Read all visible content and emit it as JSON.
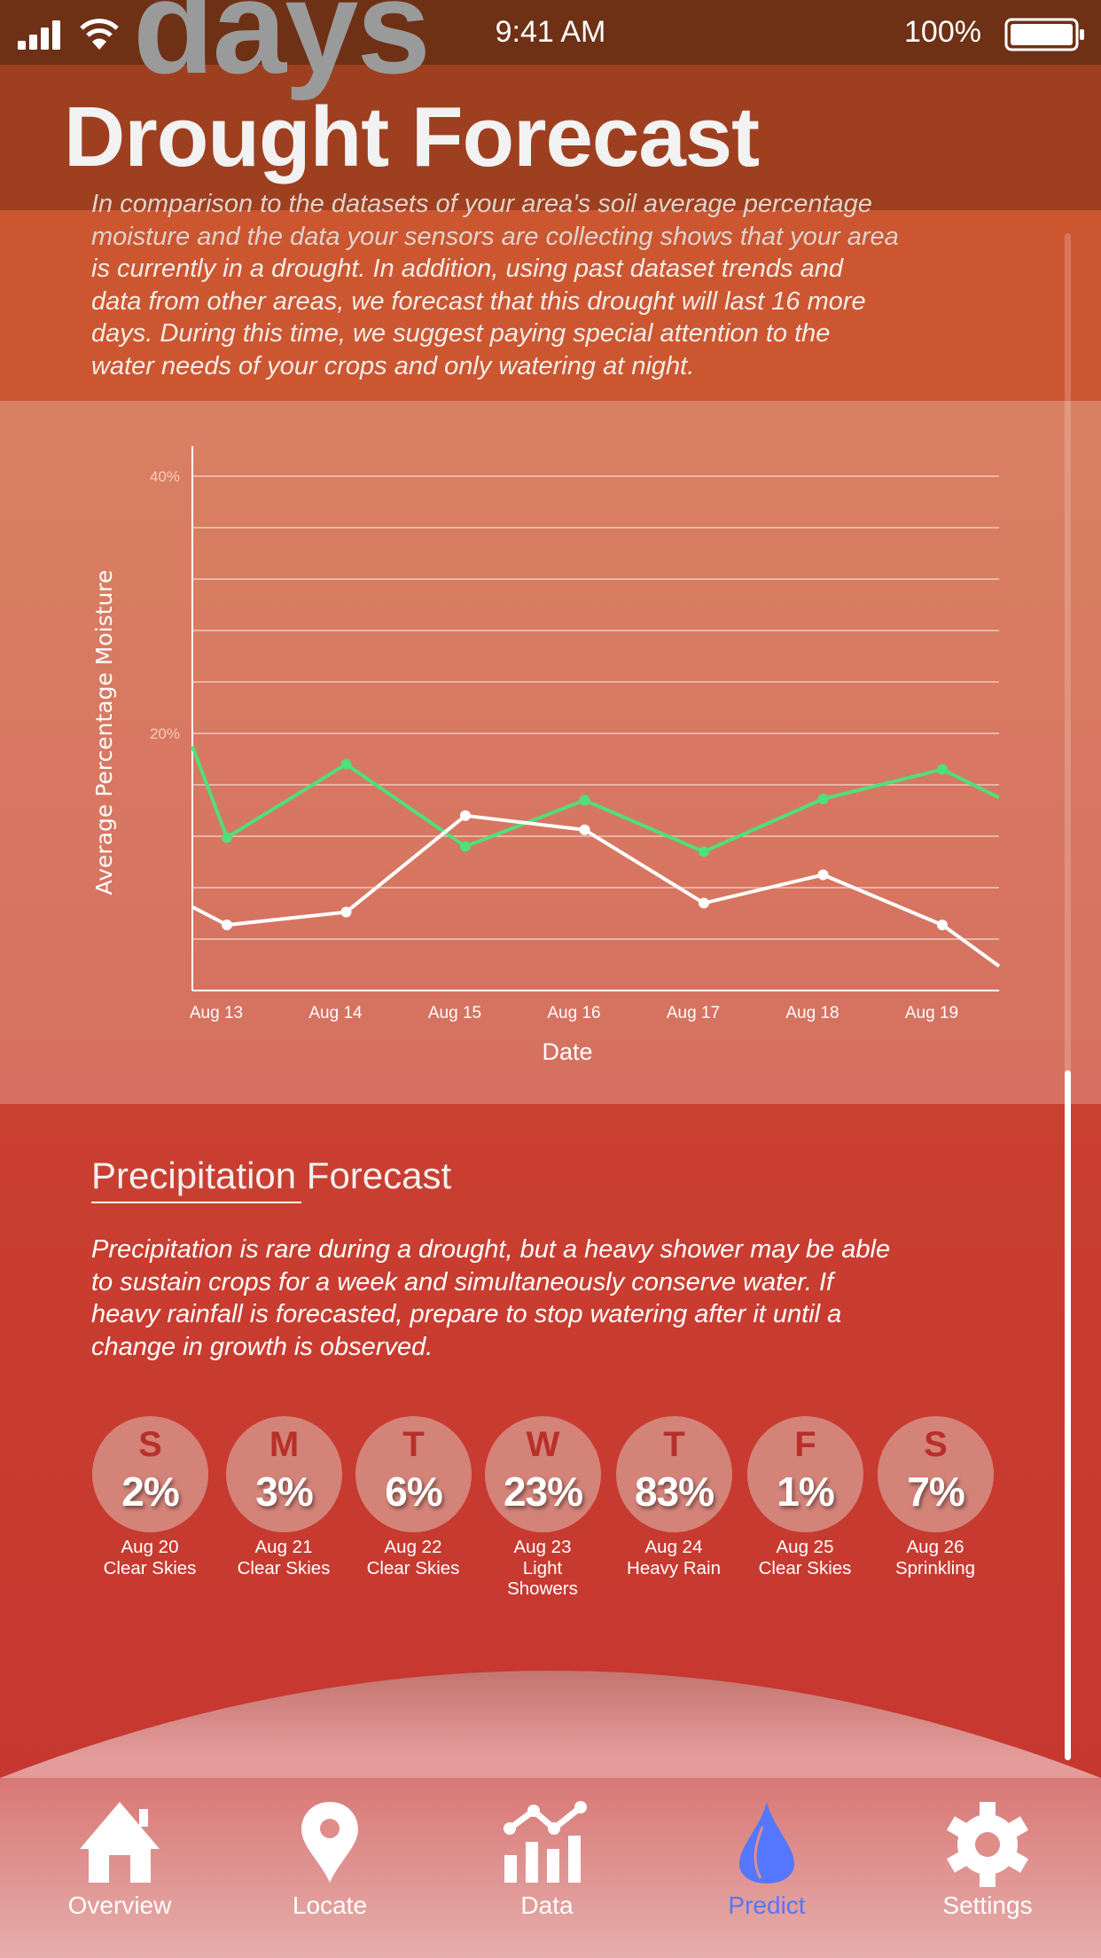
{
  "status_bar": {
    "time": "9:41 AM",
    "battery": "100%"
  },
  "drought": {
    "ghost_text": "days",
    "title": "Drought Forecast",
    "paragraph_lines": [
      "In comparison to the datasets of your area's soil average percentage",
      "moisture and the data your sensors are collecting shows that your area",
      "is currently in a drought. In addition, using past dataset trends and",
      "data from other areas, we forecast that this drought will last 16 more",
      "days. During this time, we suggest paying special attention to the",
      "water needs of your crops and only watering at night."
    ]
  },
  "chart_data": {
    "type": "line",
    "xlabel": "Date",
    "ylabel": "Average Percentage Moisture",
    "categories": [
      "Aug 13",
      "Aug 14",
      "Aug 15",
      "Aug 16",
      "Aug 17",
      "Aug 18",
      "Aug 19"
    ],
    "yticks": [
      "20%",
      "40%"
    ],
    "ylim": [
      0,
      45
    ],
    "grid": true,
    "gridline_step": 4,
    "series": [
      {
        "color": "#4ee07a",
        "values": [
          11.9,
          17.6,
          11.2,
          14.8,
          10.8,
          14.9,
          17.2
        ],
        "value_before_first": 19.0,
        "value_after_last": 15.0
      },
      {
        "color": "#ffffff",
        "values": [
          5.1,
          6.1,
          13.6,
          12.5,
          6.8,
          9.0,
          5.1
        ],
        "value_before_first": 6.5,
        "value_after_last": 1.9
      }
    ]
  },
  "precipitation": {
    "title": "Precipitation Forecast",
    "paragraph_lines": [
      "Precipitation is rare during a drought, but a heavy shower may be able",
      "to sustain crops for a week and simultaneously conserve water. If",
      "heavy rainfall is forecasted, prepare to stop watering after it until a",
      "change in growth is observed."
    ],
    "days": [
      {
        "letter": "S",
        "pct": "2%",
        "date": "Aug 20",
        "cond": "Clear Skies"
      },
      {
        "letter": "M",
        "pct": "3%",
        "date": "Aug 21",
        "cond": "Clear Skies"
      },
      {
        "letter": "T",
        "pct": "6%",
        "date": "Aug 22",
        "cond": "Clear Skies"
      },
      {
        "letter": "W",
        "pct": "23%",
        "date": "Aug 23",
        "cond": "Light Showers"
      },
      {
        "letter": "T",
        "pct": "83%",
        "date": "Aug 24",
        "cond": "Heavy Rain"
      },
      {
        "letter": "F",
        "pct": "1%",
        "date": "Aug 25",
        "cond": "Clear Skies"
      },
      {
        "letter": "S",
        "pct": "7%",
        "date": "Aug 26",
        "cond": "Sprinkling"
      }
    ]
  },
  "nav": {
    "active_color": "#5577ff",
    "items": [
      {
        "label": "Overview",
        "icon": "home-icon"
      },
      {
        "label": "Locate",
        "icon": "map-pin-icon"
      },
      {
        "label": "Data",
        "icon": "chart-icon"
      },
      {
        "label": "Predict",
        "icon": "water-drop-icon",
        "active": true
      },
      {
        "label": "Settings",
        "icon": "gear-icon"
      }
    ]
  }
}
